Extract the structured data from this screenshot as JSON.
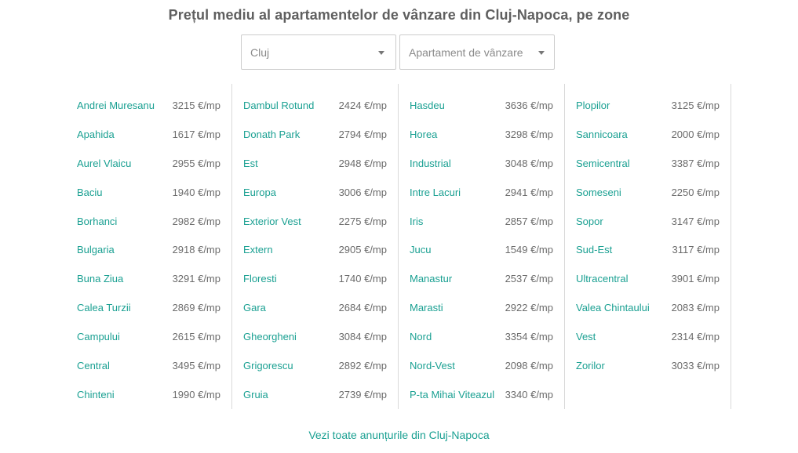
{
  "title": "Prețul mediu al apartamentelor de vânzare din Cluj-Napoca, pe zone",
  "filters": {
    "city": "Cluj",
    "property_type": "Apartament de vânzare"
  },
  "columns": [
    [
      {
        "zone": "Andrei Muresanu",
        "price": "3215 €/mp"
      },
      {
        "zone": "Apahida",
        "price": "1617 €/mp"
      },
      {
        "zone": "Aurel Vlaicu",
        "price": "2955 €/mp"
      },
      {
        "zone": "Baciu",
        "price": "1940 €/mp"
      },
      {
        "zone": "Borhanci",
        "price": "2982 €/mp"
      },
      {
        "zone": "Bulgaria",
        "price": "2918 €/mp"
      },
      {
        "zone": "Buna Ziua",
        "price": "3291 €/mp"
      },
      {
        "zone": "Calea Turzii",
        "price": "2869 €/mp"
      },
      {
        "zone": "Campului",
        "price": "2615 €/mp"
      },
      {
        "zone": "Central",
        "price": "3495 €/mp"
      },
      {
        "zone": "Chinteni",
        "price": "1990 €/mp"
      }
    ],
    [
      {
        "zone": "Dambul Rotund",
        "price": "2424 €/mp"
      },
      {
        "zone": "Donath Park",
        "price": "2794 €/mp"
      },
      {
        "zone": "Est",
        "price": "2948 €/mp"
      },
      {
        "zone": "Europa",
        "price": "3006 €/mp"
      },
      {
        "zone": "Exterior Vest",
        "price": "2275 €/mp"
      },
      {
        "zone": "Extern",
        "price": "2905 €/mp"
      },
      {
        "zone": "Floresti",
        "price": "1740 €/mp"
      },
      {
        "zone": "Gara",
        "price": "2684 €/mp"
      },
      {
        "zone": "Gheorgheni",
        "price": "3084 €/mp"
      },
      {
        "zone": "Grigorescu",
        "price": "2892 €/mp"
      },
      {
        "zone": "Gruia",
        "price": "2739 €/mp"
      }
    ],
    [
      {
        "zone": "Hasdeu",
        "price": "3636 €/mp"
      },
      {
        "zone": "Horea",
        "price": "3298 €/mp"
      },
      {
        "zone": "Industrial",
        "price": "3048 €/mp"
      },
      {
        "zone": "Intre Lacuri",
        "price": "2941 €/mp"
      },
      {
        "zone": "Iris",
        "price": "2857 €/mp"
      },
      {
        "zone": "Jucu",
        "price": "1549 €/mp"
      },
      {
        "zone": "Manastur",
        "price": "2537 €/mp"
      },
      {
        "zone": "Marasti",
        "price": "2922 €/mp"
      },
      {
        "zone": "Nord",
        "price": "3354 €/mp"
      },
      {
        "zone": "Nord-Vest",
        "price": "2098 €/mp"
      },
      {
        "zone": "P-ta Mihai Viteazul",
        "price": "3340 €/mp"
      }
    ],
    [
      {
        "zone": "Plopilor",
        "price": "3125 €/mp"
      },
      {
        "zone": "Sannicoara",
        "price": "2000 €/mp"
      },
      {
        "zone": "Semicentral",
        "price": "3387 €/mp"
      },
      {
        "zone": "Someseni",
        "price": "2250 €/mp"
      },
      {
        "zone": "Sopor",
        "price": "3147 €/mp"
      },
      {
        "zone": "Sud-Est",
        "price": "3117 €/mp"
      },
      {
        "zone": "Ultracentral",
        "price": "3901 €/mp"
      },
      {
        "zone": "Valea Chintaului",
        "price": "2083 €/mp"
      },
      {
        "zone": "Vest",
        "price": "2314 €/mp"
      },
      {
        "zone": "Zorilor",
        "price": "3033 €/mp"
      }
    ]
  ],
  "footer_link": "Vezi toate anunțurile din Cluj-Napoca",
  "colors": {
    "link": "#1aa092",
    "title": "#5f5f5f",
    "price": "#6b6b6b",
    "divider": "#d9d9d9"
  },
  "icons": {
    "dropdown": "caret-down-icon"
  }
}
